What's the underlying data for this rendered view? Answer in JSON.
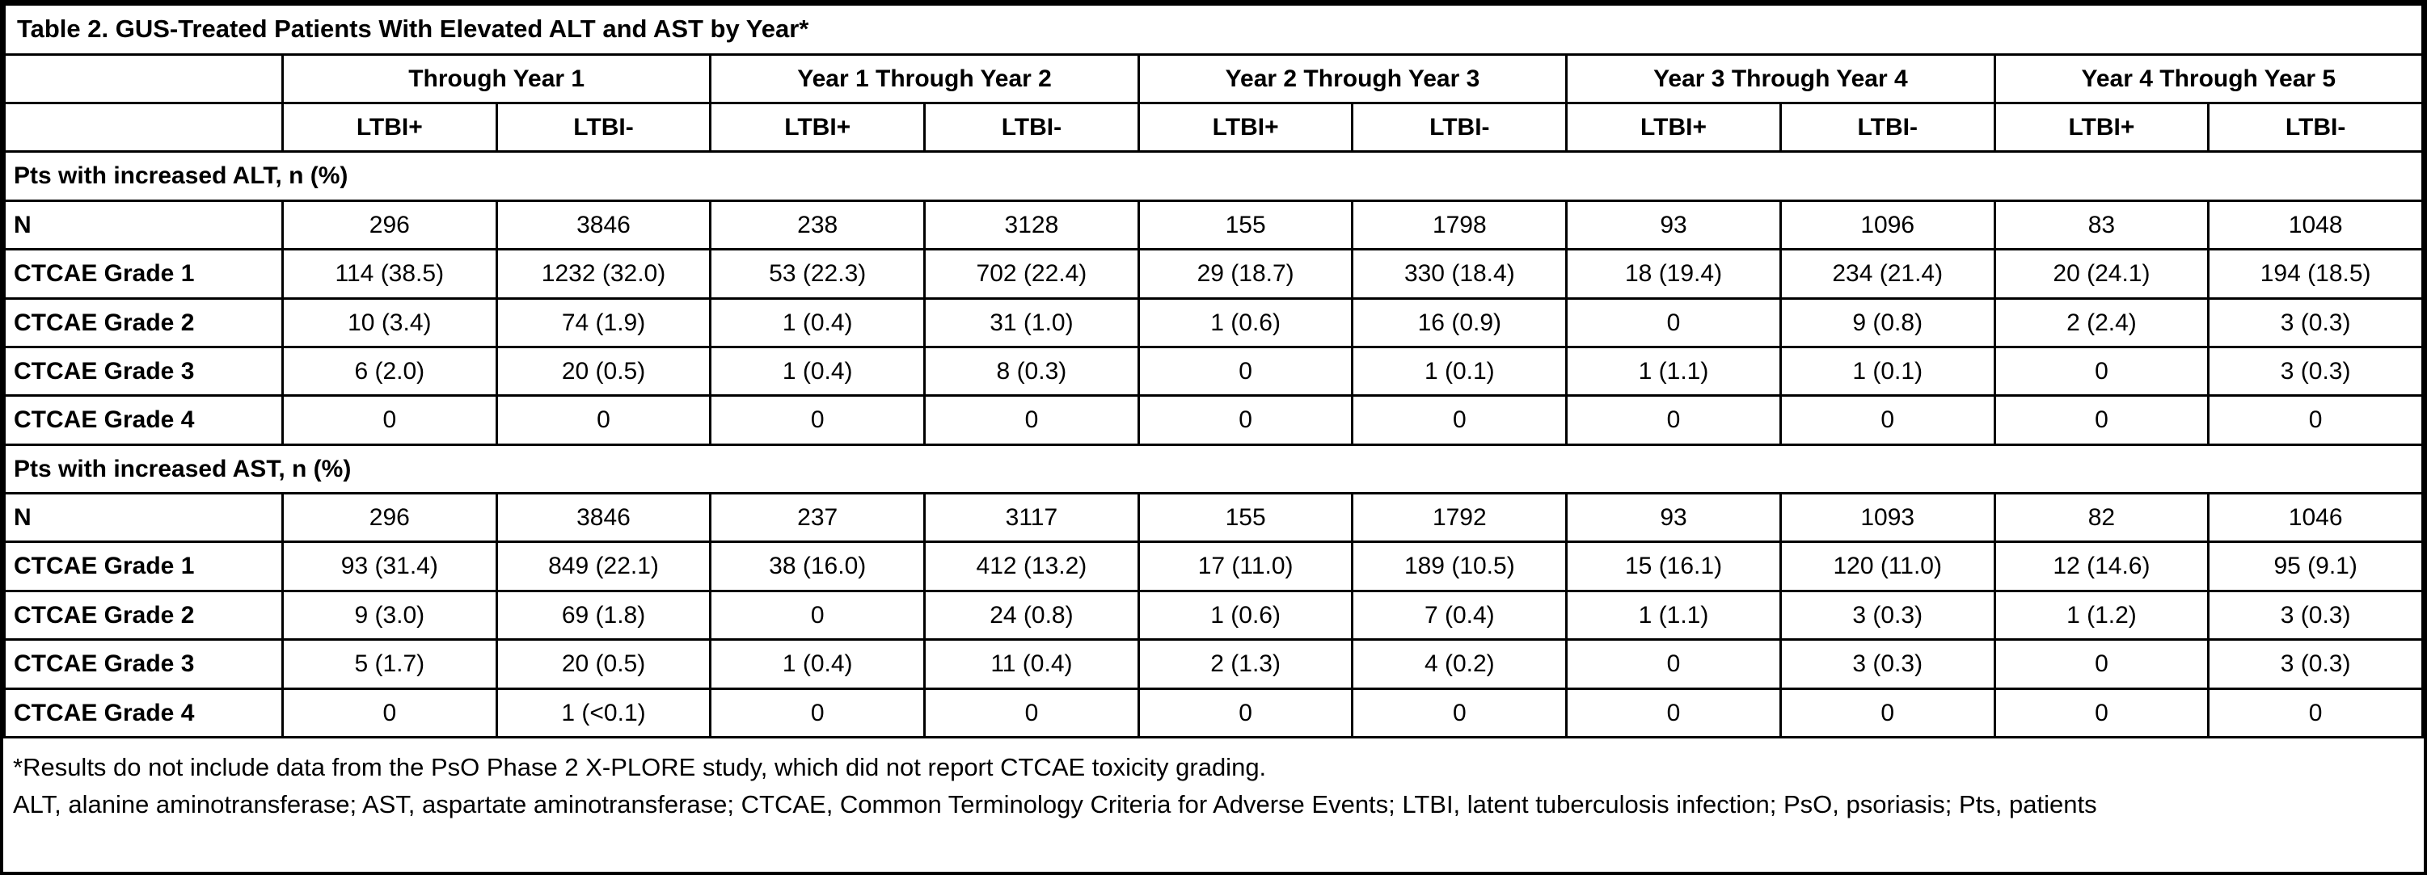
{
  "table": {
    "title": "Table 2. GUS-Treated Patients With Elevated ALT and AST by Year*",
    "year_groups": [
      "Through Year 1",
      "Year 1 Through Year 2",
      "Year 2 Through Year 3",
      "Year 3 Through Year 4",
      "Year 4 Through Year 5"
    ],
    "subheaders": [
      "LTBI+",
      "LTBI-"
    ],
    "sections": [
      {
        "header": "Pts with increased ALT, n (%)",
        "rows": [
          {
            "label": "N",
            "values": [
              "296",
              "3846",
              "238",
              "3128",
              "155",
              "1798",
              "93",
              "1096",
              "83",
              "1048"
            ]
          },
          {
            "label": "CTCAE Grade 1",
            "values": [
              "114 (38.5)",
              "1232 (32.0)",
              "53 (22.3)",
              "702 (22.4)",
              "29 (18.7)",
              "330 (18.4)",
              "18 (19.4)",
              "234 (21.4)",
              "20 (24.1)",
              "194 (18.5)"
            ]
          },
          {
            "label": "CTCAE Grade 2",
            "values": [
              "10 (3.4)",
              "74 (1.9)",
              "1 (0.4)",
              "31 (1.0)",
              "1 (0.6)",
              "16 (0.9)",
              "0",
              "9 (0.8)",
              "2 (2.4)",
              "3 (0.3)"
            ]
          },
          {
            "label": "CTCAE Grade 3",
            "values": [
              "6 (2.0)",
              "20 (0.5)",
              "1 (0.4)",
              "8 (0.3)",
              "0",
              "1 (0.1)",
              "1 (1.1)",
              "1 (0.1)",
              "0",
              "3 (0.3)"
            ]
          },
          {
            "label": "CTCAE Grade 4",
            "values": [
              "0",
              "0",
              "0",
              "0",
              "0",
              "0",
              "0",
              "0",
              "0",
              "0"
            ]
          }
        ]
      },
      {
        "header": "Pts with increased AST, n (%)",
        "rows": [
          {
            "label": "N",
            "values": [
              "296",
              "3846",
              "237",
              "3117",
              "155",
              "1792",
              "93",
              "1093",
              "82",
              "1046"
            ]
          },
          {
            "label": "CTCAE Grade 1",
            "values": [
              "93 (31.4)",
              "849 (22.1)",
              "38 (16.0)",
              "412 (13.2)",
              "17 (11.0)",
              "189 (10.5)",
              "15 (16.1)",
              "120 (11.0)",
              "12 (14.6)",
              "95 (9.1)"
            ]
          },
          {
            "label": "CTCAE Grade 2",
            "values": [
              "9 (3.0)",
              "69 (1.8)",
              "0",
              "24 (0.8)",
              "1 (0.6)",
              "7 (0.4)",
              "1 (1.1)",
              "3 (0.3)",
              "1 (1.2)",
              "3 (0.3)"
            ]
          },
          {
            "label": "CTCAE Grade 3",
            "values": [
              "5 (1.7)",
              "20 (0.5)",
              "1 (0.4)",
              "11 (0.4)",
              "2 (1.3)",
              "4 (0.2)",
              "0",
              "3 (0.3)",
              "0",
              "3 (0.3)"
            ]
          },
          {
            "label": "CTCAE Grade 4",
            "values": [
              "0",
              "1 (<0.1)",
              "0",
              "0",
              "0",
              "0",
              "0",
              "0",
              "0",
              "0"
            ]
          }
        ]
      }
    ],
    "footnotes": [
      "*Results do not include data from the PsO Phase 2 X-PLORE study, which did not report CTCAE toxicity grading.",
      "ALT, alanine aminotransferase; AST, aspartate aminotransferase; CTCAE, Common Terminology Criteria for Adverse Events; LTBI, latent tuberculosis infection; PsO, psoriasis; Pts, patients"
    ]
  }
}
